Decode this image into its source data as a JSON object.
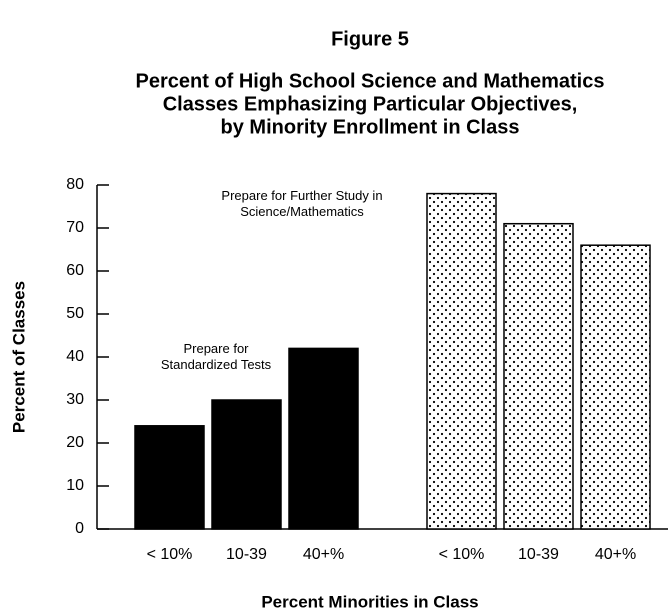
{
  "chart_data": {
    "type": "bar",
    "title": "Figure 5",
    "subtitle": [
      "Percent of High School Science and Mathematics",
      "Classes Emphasizing Particular Objectives,",
      "by Minority Enrollment in Class"
    ],
    "x_label": "Percent Minorities in Class",
    "y_label": "Percent of Classes",
    "categories": [
      "< 10%",
      "10-39",
      "40+%"
    ],
    "series": [
      {
        "name": "Prepare for Standardized Tests",
        "color": "#000000",
        "pattern": "solid",
        "values": [
          24,
          30,
          42
        ]
      },
      {
        "name": "Prepare for Further Study in Science/Mathematics",
        "color": "#000000",
        "pattern": "dots",
        "values": [
          78,
          71,
          66
        ]
      }
    ],
    "ylim": [
      0,
      80
    ],
    "yticks": [
      0,
      10,
      20,
      30,
      40,
      50,
      60,
      70,
      80
    ]
  }
}
